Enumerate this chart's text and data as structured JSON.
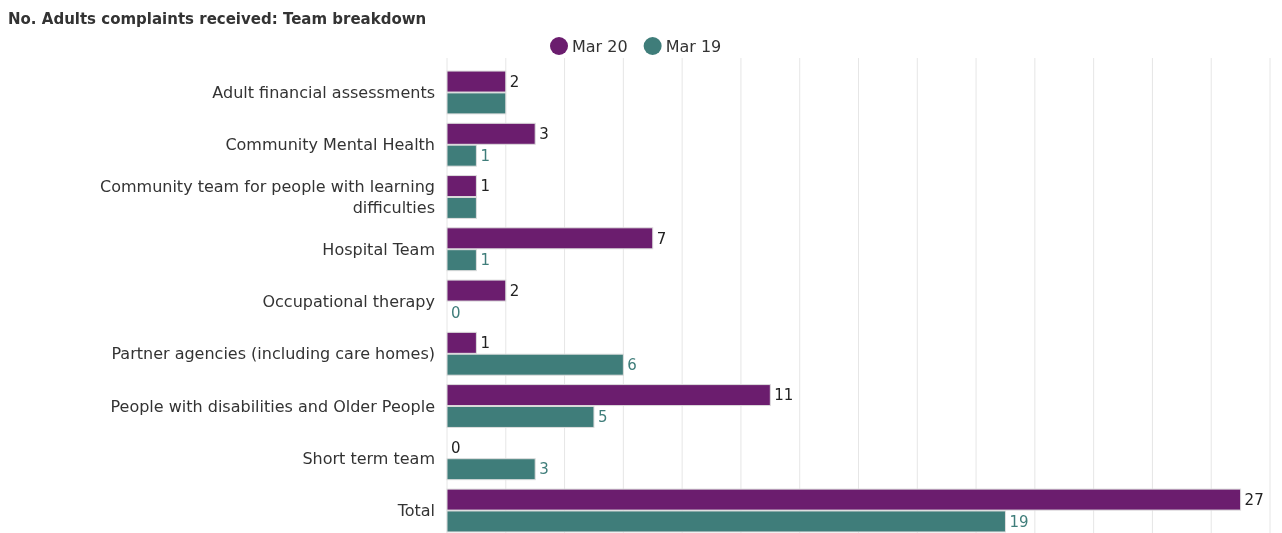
{
  "chart_data": {
    "type": "bar",
    "orientation": "horizontal",
    "title": "No. Adults complaints received: Team breakdown",
    "categories": [
      "Adult financial assessments",
      "Community Mental Health",
      "Community team for people with learning difficulties",
      "Hospital Team",
      "Occupational therapy",
      "Partner agencies (including care homes)",
      "People with disabilities and Older People",
      "Short term team",
      "Total"
    ],
    "series": [
      {
        "name": "Mar 20",
        "color": "#6b1d6e",
        "values": [
          2,
          3,
          1,
          7,
          2,
          1,
          11,
          0,
          27
        ],
        "value_labels": [
          "2",
          "3",
          "1",
          "7",
          "2",
          "1",
          "11",
          "0",
          "27"
        ]
      },
      {
        "name": "Mar 19",
        "color": "#3f7d7a",
        "values": [
          2,
          1,
          1,
          1,
          0,
          6,
          5,
          3,
          19
        ],
        "value_labels": [
          null,
          "1",
          null,
          "1",
          "0",
          "6",
          "5",
          "3",
          "19"
        ]
      }
    ],
    "xlim": [
      0,
      28
    ],
    "xticks": [
      {
        "value": 0,
        "label": null
      },
      {
        "value": 2,
        "label": null
      },
      {
        "value": 4,
        "label": null
      },
      {
        "value": 6,
        "label": null
      },
      {
        "value": 8,
        "label": null
      },
      {
        "value": 10,
        "label": null
      },
      {
        "value": 12,
        "label": null
      },
      {
        "value": 14,
        "label": null
      },
      {
        "value": 16,
        "label": null
      },
      {
        "value": 18,
        "label": null
      },
      {
        "value": 20,
        "label": null
      },
      {
        "value": 22,
        "label": null
      },
      {
        "value": 24,
        "label": null
      },
      {
        "value": 26,
        "label": null
      },
      {
        "value": 28,
        "label": null
      }
    ],
    "tick_labels": "y",
    "grid": "x",
    "legend": "top"
  }
}
